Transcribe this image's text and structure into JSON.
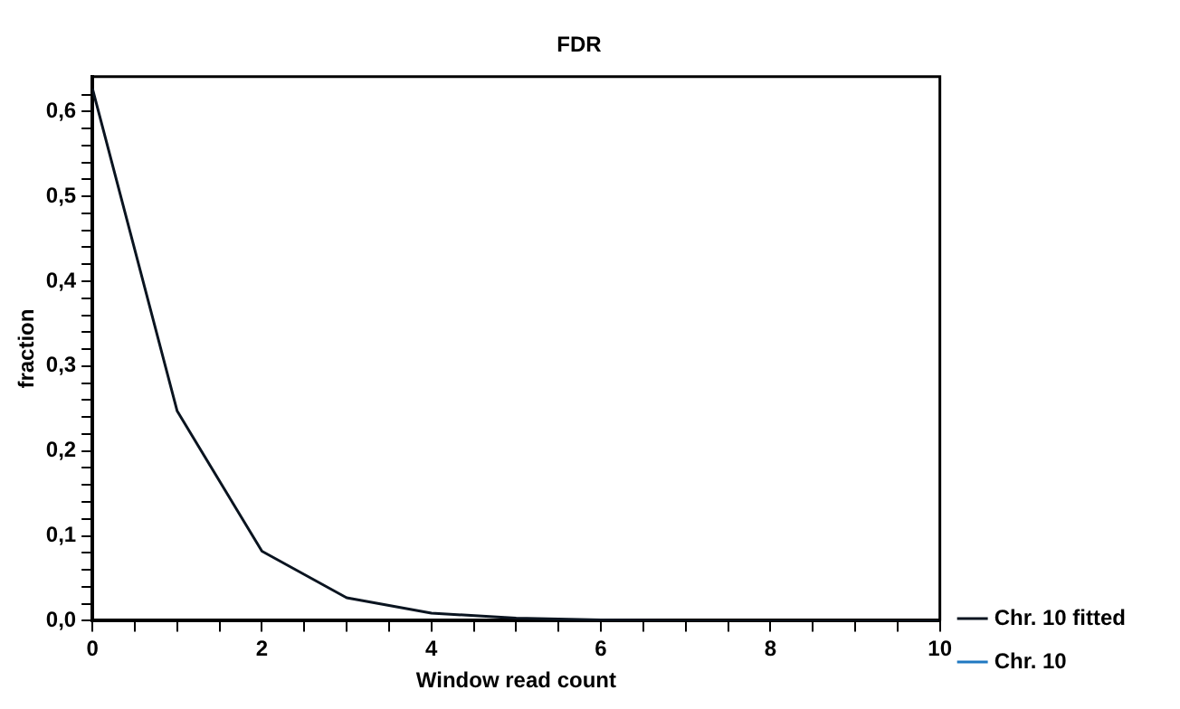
{
  "chart_data": {
    "type": "line",
    "title": "FDR",
    "xlabel": "Window read count",
    "ylabel": "fraction",
    "x": [
      0,
      1,
      2,
      3,
      4,
      5,
      6,
      7,
      8,
      9,
      10
    ],
    "series": [
      {
        "name": "Chr. 10 fitted",
        "color": "#0a1420",
        "values": [
          0.627,
          0.247,
          0.082,
          0.027,
          0.009,
          0.003,
          0.001,
          0,
          0,
          0,
          0
        ]
      },
      {
        "name": "Chr. 10",
        "color": "#1f78c1",
        "values": [
          null,
          null,
          null,
          null,
          null,
          null,
          null,
          null,
          null,
          null,
          null
        ]
      }
    ],
    "xlim": [
      0,
      10
    ],
    "xticks": [
      0,
      {
        "value": 0.5,
        "label": null
      },
      {
        "value": 1,
        "label": null
      },
      {
        "value": 1.5,
        "label": null
      },
      2,
      {
        "value": 2.5,
        "label": null
      },
      {
        "value": 3,
        "label": null
      },
      {
        "value": 3.5,
        "label": null
      },
      4,
      {
        "value": 4.5,
        "label": null
      },
      {
        "value": 5,
        "label": null
      },
      {
        "value": 5.5,
        "label": null
      },
      6,
      {
        "value": 6.5,
        "label": null
      },
      {
        "value": 7,
        "label": null
      },
      {
        "value": 7.5,
        "label": null
      },
      8,
      {
        "value": 8.5,
        "label": null
      },
      {
        "value": 9,
        "label": null
      },
      {
        "value": 9.5,
        "label": null
      },
      10
    ],
    "ylim": [
      0,
      0.641
    ],
    "yticks": [
      {
        "value": 0,
        "label": "0,0"
      },
      {
        "value": 0.02,
        "label": null
      },
      {
        "value": 0.04,
        "label": null
      },
      {
        "value": 0.06,
        "label": null
      },
      {
        "value": 0.08,
        "label": null
      },
      {
        "value": 0.1,
        "label": "0,1"
      },
      {
        "value": 0.12,
        "label": null
      },
      {
        "value": 0.14,
        "label": null
      },
      {
        "value": 0.16,
        "label": null
      },
      {
        "value": 0.18,
        "label": null
      },
      {
        "value": 0.2,
        "label": "0,2"
      },
      {
        "value": 0.22,
        "label": null
      },
      {
        "value": 0.24,
        "label": null
      },
      {
        "value": 0.26,
        "label": null
      },
      {
        "value": 0.28,
        "label": null
      },
      {
        "value": 0.3,
        "label": "0,3"
      },
      {
        "value": 0.32,
        "label": null
      },
      {
        "value": 0.34,
        "label": null
      },
      {
        "value": 0.36,
        "label": null
      },
      {
        "value": 0.38,
        "label": null
      },
      {
        "value": 0.4,
        "label": "0,4"
      },
      {
        "value": 0.42,
        "label": null
      },
      {
        "value": 0.44,
        "label": null
      },
      {
        "value": 0.46,
        "label": null
      },
      {
        "value": 0.48,
        "label": null
      },
      {
        "value": 0.5,
        "label": "0,5"
      },
      {
        "value": 0.52,
        "label": null
      },
      {
        "value": 0.54,
        "label": null
      },
      {
        "value": 0.56,
        "label": null
      },
      {
        "value": 0.58,
        "label": null
      },
      {
        "value": 0.6,
        "label": "0,6"
      },
      {
        "value": 0.62,
        "label": null
      }
    ],
    "grid": false,
    "legend": "bottom right",
    "marker": "none",
    "line_style": "solid"
  }
}
